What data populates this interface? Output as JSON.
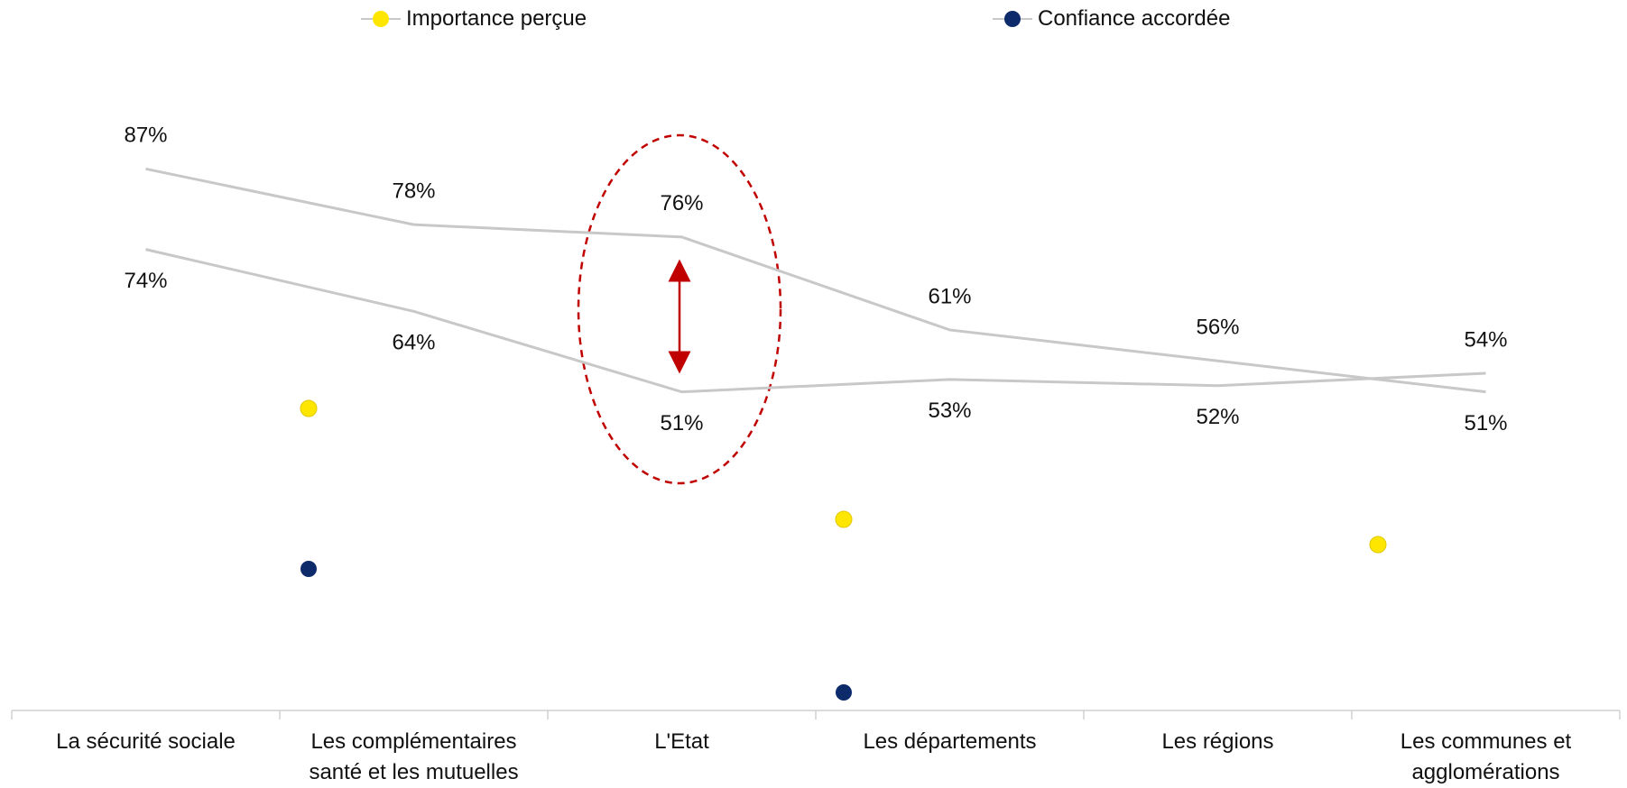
{
  "chart_data": {
    "type": "line",
    "categories": [
      "La sécurité sociale",
      "Les complémentaires santé et les mutuelles",
      "L'Etat",
      "Les départements",
      "Les régions",
      "Les communes et agglomérations"
    ],
    "series": [
      {
        "name": "Importance perçue",
        "color": "#ffe600",
        "line_color": "#c8c8c8",
        "values": [
          87,
          78,
          76,
          61,
          56,
          51
        ],
        "value_labels": [
          "87%",
          "78%",
          "76%",
          "61%",
          "56%",
          "51%"
        ]
      },
      {
        "name": "Confiance accordée",
        "color": "#0d2a6b",
        "line_color": "#c8c8c8",
        "values": [
          74,
          64,
          51,
          53,
          52,
          54
        ],
        "value_labels": [
          "74%",
          "64%",
          "51%",
          "53%",
          "52%",
          "54%"
        ]
      }
    ],
    "ylim": [
      0,
      100
    ],
    "legend": "top"
  }
}
